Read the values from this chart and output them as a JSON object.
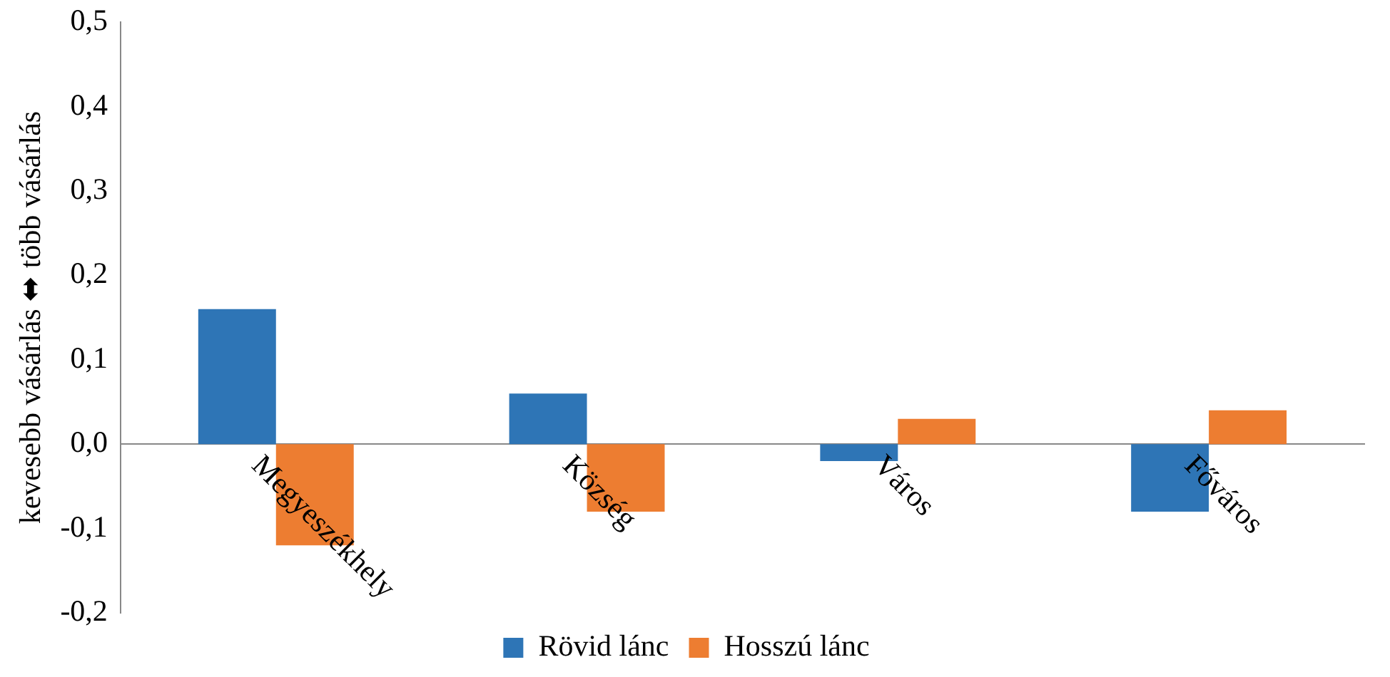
{
  "chart_data": {
    "type": "bar",
    "ylabel": "kevesebb vásárlás ⬌ több vásárlás",
    "categories": [
      "Megyeszékhely",
      "Község",
      "Város",
      "Főváros"
    ],
    "series": [
      {
        "name": "Rövid lánc",
        "color": "#2e75b6",
        "values": [
          0.16,
          0.06,
          -0.02,
          -0.08
        ]
      },
      {
        "name": "Hosszú lánc",
        "color": "#ed7d31",
        "values": [
          -0.12,
          -0.08,
          0.03,
          0.04
        ]
      }
    ],
    "ylim": [
      -0.2,
      0.5
    ],
    "yticks": [
      {
        "value": -0.2,
        "label": "-0,2"
      },
      {
        "value": -0.1,
        "label": "-0,1"
      },
      {
        "value": 0,
        "label": "0,0"
      },
      {
        "value": 0.1,
        "label": "0,1"
      },
      {
        "value": 0.2,
        "label": "0,2"
      },
      {
        "value": 0.3,
        "label": "0,3"
      },
      {
        "value": 0.4,
        "label": "0,4"
      },
      {
        "value": 0.5,
        "label": "0,5"
      }
    ],
    "grid": false,
    "legend": "bottom"
  }
}
